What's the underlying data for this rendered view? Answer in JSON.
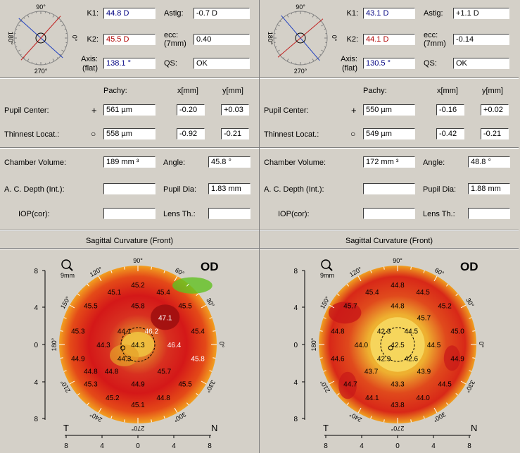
{
  "common": {
    "labels": {
      "k1": "K1:",
      "k2": "K2:",
      "axis": "Axis:",
      "flat": "(flat)",
      "astig": "Astig:",
      "ecc": "ecc:",
      "ecc_sub": "(7mm)",
      "qs": "QS:",
      "pachy": "Pachy:",
      "x_mm": "x[mm]",
      "y_mm": "y[mm]",
      "pupil_center": "Pupil Center:",
      "thinnest": "Thinnest Locat.:",
      "chamber_volume": "Chamber Volume:",
      "angle": "Angle:",
      "ac_depth": "A. C. Depth (Int.):",
      "pupil_dia": "Pupil Dia:",
      "iop": "IOP(cor):",
      "lens_th": "Lens Th.:",
      "map_title": "Sagittal Curvature (Front)",
      "zoom_label": "9mm",
      "eye": "OD",
      "temporal": "T",
      "nasal": "N",
      "plus_marker": "+",
      "circle_marker": "○"
    },
    "compass_labels": {
      "top": "90°",
      "bottom": "270°",
      "left": "180°",
      "right": "0°"
    },
    "map_degree_labels": [
      "90°",
      "60°",
      "30°",
      "0°",
      "330°",
      "300°",
      "270°",
      "240°",
      "210°",
      "180°",
      "150°",
      "120°"
    ],
    "axis_ticks": [
      "8",
      "4",
      "0",
      "4",
      "8"
    ],
    "colors": {
      "blue_axis": "#2040c0",
      "red_axis": "#c02020",
      "value_blue": "#000080",
      "value_red": "#b00000"
    }
  },
  "left": {
    "k1": "44.8 D",
    "k2": "45.5 D",
    "axis": "138.1 °",
    "astig": "-0.7 D",
    "ecc": "0.40",
    "qs": "OK",
    "pupil_pachy": "561 µm",
    "pupil_x": "-0.20",
    "pupil_y": "+0.03",
    "thin_pachy": "558 µm",
    "thin_x": "-0.92",
    "thin_y": "-0.21",
    "chamber_volume": "189 mm ³",
    "angle": "45.8 °",
    "ac_depth": "",
    "pupil_dia": "1.83 mm",
    "iop": "",
    "lens_th": "",
    "map_values": [
      {
        "v": "45.2",
        "x": 0,
        "y": 6.6
      },
      {
        "v": "45.1",
        "x": -2.6,
        "y": 5.8
      },
      {
        "v": "45.4",
        "x": 2.8,
        "y": 5.8
      },
      {
        "v": "45.5",
        "x": -5.2,
        "y": 4.3
      },
      {
        "v": "45.8",
        "x": 0,
        "y": 4.3
      },
      {
        "v": "45.5",
        "x": 5.2,
        "y": 4.3
      },
      {
        "v": "47.1",
        "x": 3,
        "y": 3
      },
      {
        "v": "45.3",
        "x": -6.6,
        "y": 1.5
      },
      {
        "v": "44.1",
        "x": -1.5,
        "y": 1.5
      },
      {
        "v": "46.2",
        "x": 1.5,
        "y": 1.5
      },
      {
        "v": "45.4",
        "x": 6.6,
        "y": 1.5
      },
      {
        "v": "44.3",
        "x": -3.8,
        "y": 0
      },
      {
        "v": "44.3",
        "x": 0,
        "y": 0
      },
      {
        "v": "46.4",
        "x": 4,
        "y": 0
      },
      {
        "v": "44.9",
        "x": -6.6,
        "y": -1.5
      },
      {
        "v": "44.3",
        "x": -1.5,
        "y": -1.5
      },
      {
        "v": "45.8",
        "x": 6.6,
        "y": -1.5
      },
      {
        "v": "44.8",
        "x": -5.2,
        "y": -2.9
      },
      {
        "v": "44.8",
        "x": -2.9,
        "y": -2.9
      },
      {
        "v": "45.7",
        "x": 2.9,
        "y": -2.9
      },
      {
        "v": "45.3",
        "x": -5.2,
        "y": -4.3
      },
      {
        "v": "44.9",
        "x": 0,
        "y": -4.3
      },
      {
        "v": "45.5",
        "x": 5.2,
        "y": -4.3
      },
      {
        "v": "45.2",
        "x": -2.8,
        "y": -5.8
      },
      {
        "v": "44.8",
        "x": 2.8,
        "y": -5.8
      },
      {
        "v": "45.1",
        "x": 0,
        "y": -6.6
      }
    ]
  },
  "right": {
    "k1": "43.1 D",
    "k2": "44.1 D",
    "axis": "130.5 °",
    "astig": "+1.1 D",
    "ecc": "-0.14",
    "qs": "OK",
    "pupil_pachy": "550 µm",
    "pupil_x": "-0.16",
    "pupil_y": "+0.02",
    "thin_pachy": "549 µm",
    "thin_x": "-0.42",
    "thin_y": "-0.21",
    "chamber_volume": "172 mm ³",
    "angle": "48.8 °",
    "ac_depth": "",
    "pupil_dia": "1.88 mm",
    "iop": "",
    "lens_th": "",
    "map_values": [
      {
        "v": "44.8",
        "x": 0,
        "y": 6.6
      },
      {
        "v": "45.4",
        "x": -2.8,
        "y": 5.8
      },
      {
        "v": "44.5",
        "x": 2.8,
        "y": 5.8
      },
      {
        "v": "45.7",
        "x": -5.2,
        "y": 4.3
      },
      {
        "v": "44.8",
        "x": 0,
        "y": 4.3
      },
      {
        "v": "45.2",
        "x": 5.2,
        "y": 4.3
      },
      {
        "v": "45.7",
        "x": 2.9,
        "y": 3
      },
      {
        "v": "44.8",
        "x": -6.6,
        "y": 1.5
      },
      {
        "v": "42.3",
        "x": -1.5,
        "y": 1.5
      },
      {
        "v": "44.5",
        "x": 1.5,
        "y": 1.5
      },
      {
        "v": "45.0",
        "x": 6.6,
        "y": 1.5
      },
      {
        "v": "44.0",
        "x": -4,
        "y": 0
      },
      {
        "v": "42.5",
        "x": 0,
        "y": 0
      },
      {
        "v": "44.5",
        "x": 4,
        "y": 0
      },
      {
        "v": "44.6",
        "x": -6.6,
        "y": -1.5
      },
      {
        "v": "42.9",
        "x": -1.5,
        "y": -1.5
      },
      {
        "v": "42.6",
        "x": 1.5,
        "y": -1.5
      },
      {
        "v": "44.9",
        "x": 6.6,
        "y": -1.5
      },
      {
        "v": "43.7",
        "x": -2.9,
        "y": -2.9
      },
      {
        "v": "43.9",
        "x": 2.9,
        "y": -2.9
      },
      {
        "v": "44.7",
        "x": -5.2,
        "y": -4.3
      },
      {
        "v": "43.3",
        "x": 0,
        "y": -4.3
      },
      {
        "v": "44.5",
        "x": 5.2,
        "y": -4.3
      },
      {
        "v": "44.1",
        "x": -2.8,
        "y": -5.8
      },
      {
        "v": "44.0",
        "x": 2.8,
        "y": -5.8
      },
      {
        "v": "43.8",
        "x": 0,
        "y": -6.6
      }
    ]
  }
}
